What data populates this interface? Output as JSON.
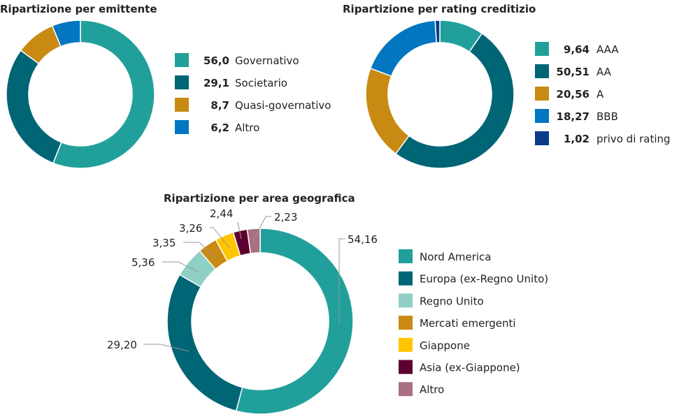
{
  "chart_data": [
    {
      "type": "pie",
      "donut": true,
      "title": "Ripartizione per emittente",
      "legend_placement": "right",
      "categories": [
        "Governativo",
        "Societario",
        "Quasi-governativo",
        "Altro"
      ],
      "values": [
        56.0,
        29.1,
        8.7,
        6.2
      ],
      "value_labels": [
        "56,0",
        "29,1",
        "8,7",
        "6,2"
      ],
      "colors": [
        "#21a09b",
        "#006575",
        "#c98a13",
        "#0077c0"
      ]
    },
    {
      "type": "pie",
      "donut": true,
      "title": "Ripartizione per rating creditizio",
      "legend_placement": "right",
      "categories": [
        "AAA",
        "AA",
        "A",
        "BBB",
        "privo di rating"
      ],
      "values": [
        9.64,
        50.51,
        20.56,
        18.27,
        1.02
      ],
      "value_labels": [
        "9,64",
        "50,51",
        "20,56",
        "18,27",
        "1,02"
      ],
      "colors": [
        "#21a09b",
        "#006575",
        "#c98a13",
        "#0077c0",
        "#0a3a8a"
      ]
    },
    {
      "type": "pie",
      "donut": true,
      "title": "Ripartizione per area geografica",
      "legend_placement": "right",
      "categories": [
        "Nord America",
        "Europa (ex-Regno Unito)",
        "Regno Unito",
        "Mercati emergenti",
        "Giappone",
        "Asia (ex-Giappone)",
        "Altro"
      ],
      "values": [
        54.16,
        29.2,
        5.36,
        3.35,
        3.26,
        2.44,
        2.23
      ],
      "value_labels": [
        "54,16",
        "29,20",
        "5,36",
        "3,35",
        "3,26",
        "2,44",
        "2,23"
      ],
      "colors": [
        "#21a09b",
        "#006575",
        "#8fcfc4",
        "#c98a13",
        "#ffc600",
        "#5c0030",
        "#a87080"
      ]
    }
  ]
}
